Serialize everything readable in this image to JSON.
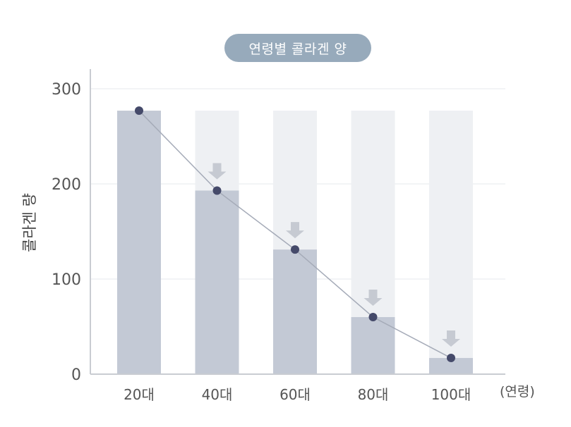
{
  "chart_data": {
    "type": "bar",
    "title": "연령별 콜라겐 양",
    "ylabel": "콜라겐 량",
    "xunit": "(연령)",
    "categories": [
      "20대",
      "40대",
      "60대",
      "80대",
      "100대"
    ],
    "values": [
      277,
      193,
      131,
      60,
      17
    ],
    "reference_value": 277,
    "ylim": [
      0,
      300
    ],
    "yticks": [
      0,
      100,
      200,
      300
    ],
    "grid": true,
    "overlay_line": true,
    "decline_arrows": [
      false,
      true,
      true,
      true,
      true
    ],
    "colors": {
      "bar": "#c3c9d5",
      "bar_background": "#eef0f3",
      "line": "#a5abb8",
      "marker": "#454a6a",
      "arrow": "#c6cad2",
      "grid": "#e6e8ec",
      "axis": "#c9ccd2",
      "title_background": "#97aabb"
    }
  }
}
